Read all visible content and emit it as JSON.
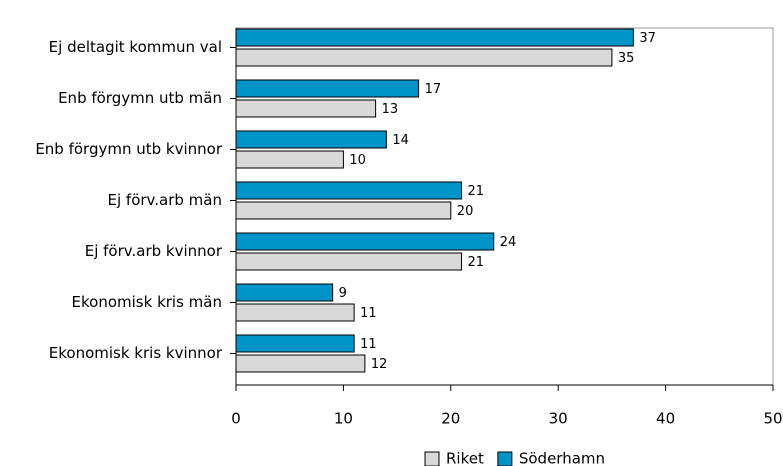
{
  "chart_data": {
    "type": "barh",
    "categories": [
      "Ej deltagit kommun val",
      "Enb förgymn utb män",
      "Enb förgymn utb kvinnor",
      "Ej förv.arb män",
      "Ej förv.arb kvinnor",
      "Ekonomisk kris män",
      "Ekonomisk kris kvinnor"
    ],
    "series": [
      {
        "name": "Riket",
        "color": "#d9d9d9",
        "values": [
          35,
          13,
          10,
          20,
          21,
          11,
          12
        ]
      },
      {
        "name": "Söderhamn",
        "color": "#0094c8",
        "values": [
          37,
          17,
          14,
          21,
          24,
          9,
          11
        ]
      }
    ],
    "xlim": [
      0,
      50
    ],
    "xticks": [
      0,
      10,
      20,
      30,
      40,
      50
    ],
    "legend": "bottom"
  }
}
